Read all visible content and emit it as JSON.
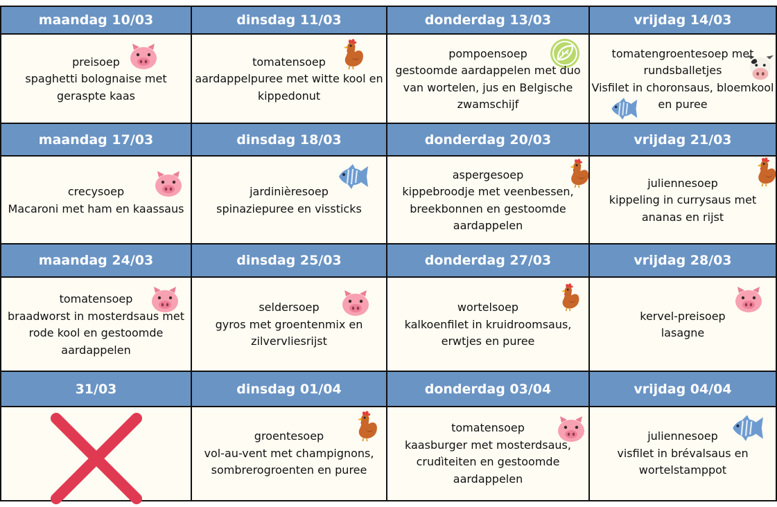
{
  "weeks": [
    {
      "days": [
        {
          "header": "maandag 10/03",
          "soup": "preisoep",
          "lines": [
            "spaghetti bolognaise met",
            "geraspte kaas"
          ],
          "icon": "pig-icon"
        },
        {
          "header": "dinsdag 11/03",
          "soup": "tomatensoep",
          "lines": [
            "aardappelpuree met witte kool en",
            "kippedonut"
          ],
          "icon": "chicken-icon"
        },
        {
          "header": "donderdag 13/03",
          "soup": "pompoensoep",
          "lines": [
            "gestoomde aardappelen met duo",
            "van wortelen, jus en Belgische",
            "zwamschijf"
          ],
          "icon": "leaf-icon"
        },
        {
          "header": "vrijdag 14/03",
          "soup": "tomatengroentesoep met",
          "lines": [
            "rundsballetjes",
            "Visfilet in choronsaus, bloemkool",
            "en puree"
          ],
          "icon": "cow-icon",
          "icon2": "fish-icon"
        }
      ]
    },
    {
      "days": [
        {
          "header": "maandag 17/03",
          "soup": "crecysoep",
          "lines": [
            "Macaroni met ham en kaassaus"
          ],
          "icon": "pig-icon"
        },
        {
          "header": "dinsdag 18/03",
          "soup": "jardinièresoep",
          "lines": [
            "spinaziepuree en vissticks"
          ],
          "icon": "fish-icon"
        },
        {
          "header": "donderdag 20/03",
          "soup": "aspergesoep",
          "lines": [
            "kippebroodje met veenbessen,",
            "breekbonnen en gestoomde",
            "aardappelen"
          ],
          "icon": "chicken-icon"
        },
        {
          "header": "vrijdag 21/03",
          "soup": "juliennesoep",
          "lines": [
            "kippeling in currysaus met",
            "ananas en rijst"
          ],
          "icon": "chicken-icon"
        }
      ]
    },
    {
      "days": [
        {
          "header": "maandag 24/03",
          "soup": "tomatensoep",
          "lines": [
            "braadworst in mosterdsaus met",
            "rode kool en gestoomde",
            "aardappelen"
          ],
          "icon": "pig-icon"
        },
        {
          "header": "dinsdag 25/03",
          "soup": "seldersoep",
          "lines": [
            "gyros met groentenmix en",
            "zilvervliesrijst"
          ],
          "icon": "pig-icon"
        },
        {
          "header": "donderdag 27/03",
          "soup": "wortelsoep",
          "lines": [
            "kalkoenfilet in kruidroomsaus,",
            "erwtjes en puree"
          ],
          "icon": "chicken-icon"
        },
        {
          "header": "vrijdag 28/03",
          "soup": "kervel-preisoep",
          "lines": [
            "lasagne"
          ],
          "icon": "pig-icon"
        }
      ]
    },
    {
      "days": [
        {
          "header": "31/03",
          "soup": "",
          "lines": [],
          "icon": "cross-icon"
        },
        {
          "header": "dinsdag 01/04",
          "soup": "groentesoep",
          "lines": [
            "vol-au-vent met champignons,",
            "sombrerogroenten en puree"
          ],
          "icon": "chicken-icon"
        },
        {
          "header": "donderdag 03/04",
          "soup": "tomatensoep",
          "lines": [
            "kaasburger met mosterdsaus,",
            "crudìteiten en gestoomde",
            "aardappelen"
          ],
          "icon": "pig-icon"
        },
        {
          "header": "vrijdag 04/04",
          "soup": "juliennesoep",
          "lines": [
            "visfilet in brévalsaus en",
            "wortelstamppot"
          ],
          "icon": "fish-icon"
        }
      ]
    }
  ]
}
